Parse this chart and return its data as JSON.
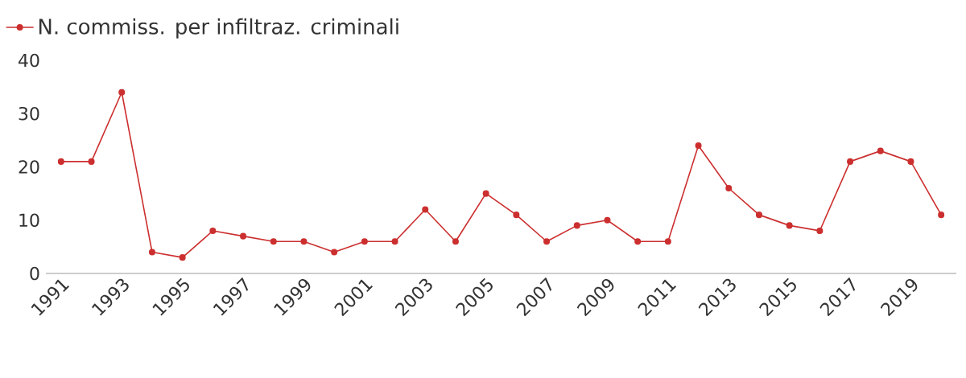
{
  "chart_data": {
    "type": "line",
    "x": [
      1991,
      1992,
      1993,
      1994,
      1995,
      1996,
      1997,
      1998,
      1999,
      2000,
      2001,
      2002,
      2003,
      2004,
      2005,
      2006,
      2007,
      2008,
      2009,
      2010,
      2011,
      2012,
      2013,
      2014,
      2015,
      2016,
      2017,
      2018,
      2019,
      2020
    ],
    "series": [
      {
        "name": "N. commiss. per infiltraz. criminali",
        "color": "#cc2f2f",
        "values": [
          21,
          21,
          34,
          4,
          3,
          8,
          7,
          6,
          6,
          4,
          6,
          6,
          12,
          6,
          15,
          11,
          6,
          9,
          10,
          6,
          6,
          24,
          16,
          11,
          9,
          8,
          21,
          23,
          21,
          11
        ]
      }
    ],
    "xlim": [
      1990.5,
      2020.5
    ],
    "ylim": [
      0,
      40
    ],
    "xticks": [
      1991,
      1993,
      1995,
      1997,
      1999,
      2001,
      2003,
      2005,
      2007,
      2009,
      2011,
      2013,
      2015,
      2017,
      2019
    ],
    "yticks": [
      0,
      10,
      20,
      30,
      40
    ],
    "marker": "circle",
    "line_style": "solid",
    "legend": "top left"
  }
}
